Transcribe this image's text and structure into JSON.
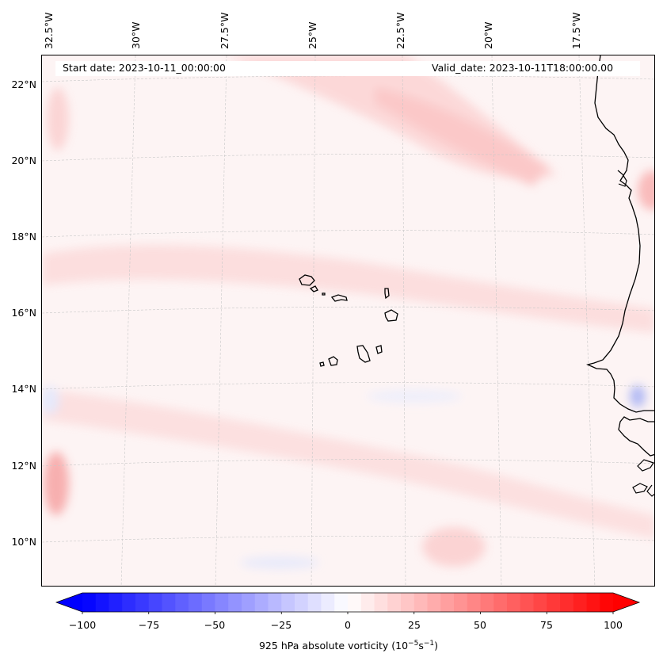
{
  "map": {
    "start_date": "Start date: 2023-10-11_00:00:00",
    "valid_date": "Valid_date: 2023-10-11T18:00:00.00",
    "longitudes": [
      "32.5°W",
      "30°W",
      "27.5°W",
      "25°W",
      "22.5°W",
      "20°W",
      "17.5°W"
    ],
    "latitudes": [
      "22°N",
      "20°N",
      "18°N",
      "16°N",
      "14°N",
      "12°N",
      "10°N"
    ],
    "islands": [
      "Santo Antão",
      "São Vicente",
      "Santa Luzia",
      "São Nicolau",
      "Sal",
      "Boa Vista",
      "Maio",
      "Santiago",
      "Fogo",
      "Brava"
    ]
  },
  "colorbar": {
    "ticks": [
      "−100",
      "−75",
      "−50",
      "−25",
      "0",
      "25",
      "50",
      "75",
      "100"
    ],
    "label_prefix": "925 hPa absolute vorticity (10",
    "label_exp1": "−5",
    "label_mid": "s",
    "label_exp2": "−1",
    "label_suffix": ")",
    "min": -100,
    "max": 100,
    "low_color": "#0000ff",
    "mid_color": "#ffffff",
    "high_color": "#ff0000"
  }
}
